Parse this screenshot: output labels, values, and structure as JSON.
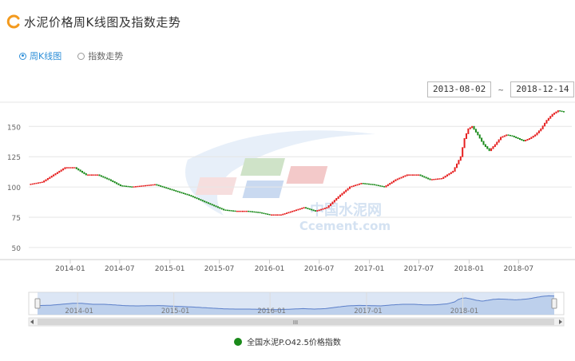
{
  "header": {
    "title": "水泥价格周K线图及指数走势",
    "icon": "logo-arc-icon"
  },
  "tabs": [
    {
      "label": "周K线图",
      "active": true
    },
    {
      "label": "指数走势",
      "active": false
    }
  ],
  "date_range": {
    "start": "2013-08-02",
    "separator": "~",
    "end": "2018-12-14"
  },
  "watermark": {
    "cn": "中国水泥网",
    "en": "Ccement.com"
  },
  "colors": {
    "up": "#e62020",
    "down": "#1a8a1a",
    "accent": "#2e8fd8",
    "navigator_fill": "#c9d9f0",
    "navigator_line": "#5b7fc9"
  },
  "chart_data": {
    "type": "line",
    "title": "",
    "xlabel": "",
    "ylabel": "",
    "x_range": [
      "2013-08-02",
      "2018-12-14"
    ],
    "ylim": [
      40,
      170
    ],
    "yticks": [
      50,
      75,
      100,
      125,
      150
    ],
    "xticks": [
      "2014-01",
      "2014-07",
      "2015-01",
      "2015-07",
      "2016-01",
      "2016-07",
      "2017-01",
      "2017-07",
      "2018-01",
      "2018-07"
    ],
    "navigator_xticks": [
      "2014-01",
      "2015-01",
      "2016-01",
      "2017-01",
      "2018-01"
    ],
    "grid": true,
    "legend_position": "bottom",
    "series": [
      {
        "name": "全国水泥P.O42.5价格指数",
        "points": [
          [
            "2013-08-02",
            102
          ],
          [
            "2013-09-20",
            104
          ],
          [
            "2013-11-01",
            110
          ],
          [
            "2013-12-13",
            116
          ],
          [
            "2014-01-17",
            116
          ],
          [
            "2014-02-28",
            110
          ],
          [
            "2014-04-11",
            110
          ],
          [
            "2014-05-23",
            106
          ],
          [
            "2014-07-04",
            101
          ],
          [
            "2014-08-15",
            100
          ],
          [
            "2014-09-26",
            101
          ],
          [
            "2014-11-07",
            102
          ],
          [
            "2014-12-19",
            99
          ],
          [
            "2015-01-30",
            96
          ],
          [
            "2015-03-13",
            93
          ],
          [
            "2015-04-24",
            89
          ],
          [
            "2015-06-05",
            85
          ],
          [
            "2015-07-17",
            81
          ],
          [
            "2015-08-28",
            80
          ],
          [
            "2015-10-09",
            80
          ],
          [
            "2015-11-20",
            79
          ],
          [
            "2016-01-01",
            77
          ],
          [
            "2016-02-12",
            77
          ],
          [
            "2016-03-25",
            80
          ],
          [
            "2016-05-06",
            83
          ],
          [
            "2016-06-17",
            80
          ],
          [
            "2016-07-29",
            83
          ],
          [
            "2016-09-09",
            92
          ],
          [
            "2016-10-21",
            100
          ],
          [
            "2016-12-02",
            103
          ],
          [
            "2017-01-13",
            102
          ],
          [
            "2017-02-24",
            100
          ],
          [
            "2017-04-07",
            106
          ],
          [
            "2017-05-19",
            110
          ],
          [
            "2017-06-30",
            110
          ],
          [
            "2017-08-11",
            106
          ],
          [
            "2017-09-22",
            107
          ],
          [
            "2017-11-03",
            113
          ],
          [
            "2017-12-01",
            125
          ],
          [
            "2017-12-15",
            140
          ],
          [
            "2017-12-29",
            148
          ],
          [
            "2018-01-12",
            150
          ],
          [
            "2018-02-02",
            143
          ],
          [
            "2018-02-23",
            135
          ],
          [
            "2018-03-16",
            130
          ],
          [
            "2018-04-06",
            135
          ],
          [
            "2018-04-27",
            141
          ],
          [
            "2018-05-18",
            143
          ],
          [
            "2018-06-08",
            142
          ],
          [
            "2018-06-29",
            140
          ],
          [
            "2018-07-20",
            138
          ],
          [
            "2018-08-10",
            140
          ],
          [
            "2018-08-31",
            143
          ],
          [
            "2018-09-21",
            148
          ],
          [
            "2018-10-12",
            155
          ],
          [
            "2018-11-02",
            160
          ],
          [
            "2018-11-23",
            163
          ],
          [
            "2018-12-14",
            162
          ]
        ]
      }
    ]
  }
}
